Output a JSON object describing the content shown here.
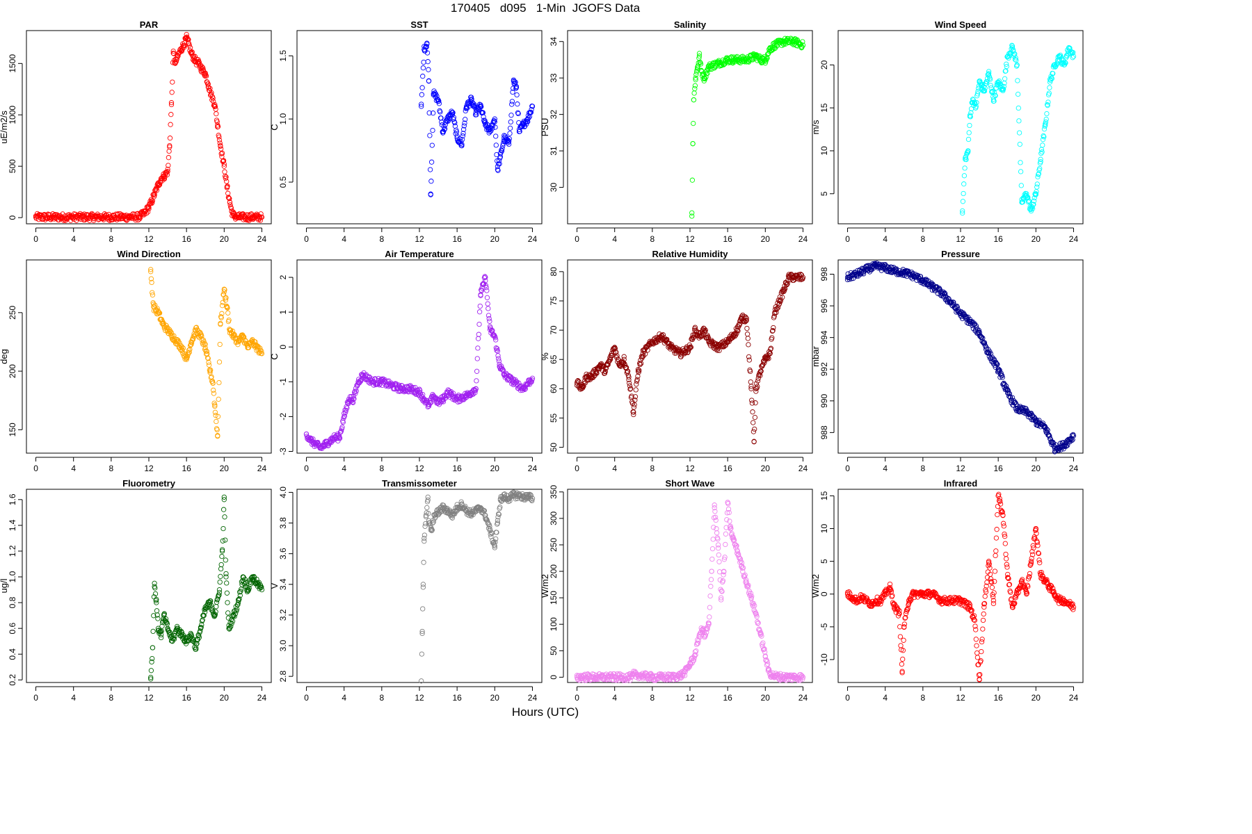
{
  "page": {
    "title": "170405   d095   1-Min  JGOFS Data",
    "x_label": "Hours (UTC)"
  },
  "chart_data": [
    {
      "type": "scatter",
      "title": "PAR",
      "ylabel": "uE/m2/s",
      "color": "#ff0000",
      "xlim": [
        -1,
        25
      ],
      "ylim": [
        -60,
        1820
      ],
      "xticks": [
        0,
        4,
        8,
        12,
        16,
        20,
        24
      ],
      "yticks": [
        0,
        500,
        1000,
        1500
      ],
      "series": [
        {
          "x": [
            0,
            2,
            4,
            6,
            8,
            10,
            11,
            11.5,
            12,
            12.3,
            12.6,
            13,
            13.3,
            13.6,
            14,
            14.2,
            14.4,
            14.6,
            14.8,
            15,
            15.2,
            15.5,
            15.8,
            16,
            16.2,
            16.5,
            16.8,
            17,
            17.3,
            17.6,
            18,
            18.3,
            18.6,
            19,
            19.3,
            19.6,
            20,
            20.3,
            20.6,
            20.8,
            21,
            21.2,
            21.5,
            22,
            23,
            24
          ],
          "y": [
            5,
            5,
            5,
            5,
            5,
            5,
            8,
            40,
            100,
            160,
            230,
            320,
            380,
            400,
            450,
            700,
            1100,
            1600,
            1500,
            1550,
            1600,
            1650,
            1700,
            1750,
            1700,
            1600,
            1550,
            1520,
            1500,
            1450,
            1400,
            1300,
            1200,
            1100,
            900,
            700,
            500,
            300,
            150,
            60,
            20,
            10,
            5,
            5,
            5,
            5
          ]
        }
      ]
    },
    {
      "type": "scatter",
      "title": "SST",
      "ylabel": "C",
      "color": "#0000ff",
      "xlim": [
        -1,
        25
      ],
      "ylim": [
        0.17,
        1.7
      ],
      "xticks": [
        0,
        4,
        8,
        12,
        16,
        20,
        24
      ],
      "yticks": [
        0.5,
        1.0,
        1.5
      ],
      "series": [
        {
          "x": [
            12.2,
            12.5,
            12.8,
            13,
            13.2,
            13.5,
            14,
            14.5,
            15,
            15.5,
            16,
            16.5,
            17,
            17.5,
            18,
            18.5,
            19,
            19.5,
            20,
            20.3,
            20.6,
            21,
            21.5,
            22,
            22.3,
            22.6,
            23,
            23.5,
            24
          ],
          "y": [
            1.1,
            1.55,
            1.6,
            1.3,
            0.4,
            1.2,
            1.15,
            0.9,
            1.0,
            1.05,
            0.85,
            0.8,
            1.1,
            1.15,
            1.05,
            1.1,
            0.95,
            0.9,
            1.0,
            0.6,
            0.7,
            0.85,
            0.8,
            1.3,
            1.25,
            0.9,
            0.95,
            1.0,
            1.1
          ]
        }
      ]
    },
    {
      "type": "scatter",
      "title": "Salinity",
      "ylabel": "PSU",
      "color": "#00ff00",
      "xlim": [
        -1,
        25
      ],
      "ylim": [
        29.0,
        34.3
      ],
      "xticks": [
        0,
        4,
        8,
        12,
        16,
        20,
        24
      ],
      "yticks": [
        30,
        31,
        32,
        33,
        34
      ],
      "series": [
        {
          "x": [
            12.2,
            12.3,
            12.4,
            12.6,
            12.8,
            13,
            13.2,
            13.5,
            14,
            15,
            16,
            17,
            18,
            19,
            19.5,
            20,
            20.5,
            21,
            22,
            23,
            24
          ],
          "y": [
            29.3,
            31.2,
            32.4,
            33.0,
            33.3,
            33.6,
            33.2,
            33.0,
            33.3,
            33.4,
            33.5,
            33.5,
            33.5,
            33.6,
            33.5,
            33.5,
            33.8,
            33.9,
            34.0,
            34.0,
            33.9
          ]
        }
      ]
    },
    {
      "type": "scatter",
      "title": "Wind Speed",
      "ylabel": "m/s",
      "color": "#00ffff",
      "xlim": [
        -1,
        25
      ],
      "ylim": [
        1.5,
        24
      ],
      "xticks": [
        0,
        4,
        8,
        12,
        16,
        20,
        24
      ],
      "yticks": [
        5,
        10,
        15,
        20
      ],
      "series": [
        {
          "x": [
            12.2,
            12.5,
            12.8,
            13,
            13.3,
            13.6,
            14,
            14.5,
            15,
            15.5,
            16,
            16.5,
            17,
            17.5,
            18,
            18.5,
            19,
            19.5,
            20,
            20.5,
            21,
            21.5,
            22,
            22.5,
            23,
            23.5,
            24
          ],
          "y": [
            3,
            9,
            10,
            14,
            16,
            15,
            18,
            17,
            19,
            16,
            18,
            17,
            21,
            22,
            20,
            4,
            5,
            3,
            5,
            9,
            13,
            18,
            20,
            21,
            20,
            22,
            21
          ]
        }
      ]
    },
    {
      "type": "scatter",
      "title": "Wind Direction",
      "ylabel": "deg",
      "color": "#ffa500",
      "xlim": [
        -1,
        25
      ],
      "ylim": [
        130,
        295
      ],
      "xticks": [
        0,
        4,
        8,
        12,
        16,
        20,
        24
      ],
      "yticks": [
        150,
        200,
        250
      ],
      "series": [
        {
          "x": [
            12.2,
            12.5,
            13,
            13.5,
            14,
            14.5,
            15,
            15.5,
            16,
            16.5,
            17,
            17.5,
            18,
            18.5,
            18.8,
            19,
            19.3,
            19.6,
            20,
            20.3,
            20.6,
            21,
            21.5,
            22,
            22.5,
            23,
            23.5,
            24
          ],
          "y": [
            285,
            255,
            250,
            240,
            235,
            230,
            225,
            220,
            210,
            225,
            235,
            230,
            220,
            200,
            190,
            170,
            145,
            240,
            270,
            255,
            235,
            230,
            225,
            230,
            220,
            225,
            220,
            215
          ]
        }
      ]
    },
    {
      "type": "scatter",
      "title": "Air Temperature",
      "ylabel": "C",
      "color": "#a020f0",
      "xlim": [
        -1,
        25
      ],
      "ylim": [
        -3.05,
        2.5
      ],
      "xticks": [
        0,
        4,
        8,
        12,
        16,
        20,
        24
      ],
      "yticks": [
        -3,
        -2,
        -1,
        0,
        1,
        2
      ],
      "series": [
        {
          "x": [
            0,
            0.5,
            1,
            1.5,
            2,
            2.5,
            3,
            3.5,
            4,
            4.5,
            5,
            5.5,
            6,
            7,
            8,
            9,
            10,
            11,
            12,
            12.5,
            13,
            13.5,
            14,
            14.5,
            15,
            16,
            17,
            18,
            18.5,
            19,
            19.5,
            20,
            20.5,
            21,
            22,
            23,
            24
          ],
          "y": [
            -2.5,
            -2.7,
            -2.8,
            -2.9,
            -2.8,
            -2.7,
            -2.6,
            -2.6,
            -2.0,
            -1.5,
            -1.5,
            -1.0,
            -0.8,
            -1.0,
            -1.0,
            -1.1,
            -1.2,
            -1.2,
            -1.3,
            -1.5,
            -1.7,
            -1.4,
            -1.6,
            -1.5,
            -1.3,
            -1.5,
            -1.4,
            -1.2,
            1.5,
            2.0,
            0.5,
            0.3,
            -0.5,
            -0.8,
            -1.0,
            -1.2,
            -0.9
          ]
        }
      ]
    },
    {
      "type": "scatter",
      "title": "Relative Humidity",
      "ylabel": "%",
      "color": "#8b0000",
      "xlim": [
        -1,
        25
      ],
      "ylim": [
        49,
        82
      ],
      "xticks": [
        0,
        4,
        8,
        12,
        16,
        20,
        24
      ],
      "yticks": [
        50,
        55,
        60,
        65,
        70,
        75,
        80
      ],
      "series": [
        {
          "x": [
            0,
            0.5,
            1,
            1.5,
            2,
            2.5,
            3,
            3.5,
            4,
            4.5,
            5,
            5.5,
            6,
            6.5,
            7,
            8,
            9,
            10,
            11,
            12,
            12.5,
            13,
            13.5,
            14,
            15,
            16,
            17,
            17.5,
            18,
            18.5,
            18.8,
            19,
            19.5,
            20,
            20.5,
            21,
            21.5,
            22,
            22.5,
            23,
            24
          ],
          "y": [
            61,
            60,
            62,
            62,
            63,
            64,
            63,
            65,
            67,
            64,
            65,
            62,
            56,
            63,
            66,
            68,
            69,
            67,
            66,
            67,
            70,
            69,
            70,
            68,
            67,
            68,
            70,
            72,
            72,
            60,
            51,
            60,
            63,
            65,
            66,
            73,
            75,
            77,
            79,
            79,
            79
          ]
        }
      ]
    },
    {
      "type": "scatter",
      "title": "Pressure",
      "ylabel": "mbar",
      "color": "#00008b",
      "xlim": [
        -1,
        25
      ],
      "ylim": [
        986.7,
        998.9
      ],
      "xticks": [
        0,
        4,
        8,
        12,
        16,
        20,
        24
      ],
      "yticks": [
        988,
        990,
        992,
        994,
        996,
        998
      ],
      "series": [
        {
          "x": [
            0,
            1,
            2,
            3,
            4,
            5,
            6,
            7,
            8,
            9,
            10,
            11,
            12,
            13,
            14,
            15,
            16,
            17,
            18,
            19,
            20,
            21,
            22,
            23,
            24
          ],
          "y": [
            997.8,
            998.0,
            998.3,
            998.5,
            998.4,
            998.2,
            998.1,
            997.9,
            997.6,
            997.2,
            996.8,
            996.2,
            995.5,
            995.0,
            994.3,
            993.0,
            992.0,
            990.5,
            989.5,
            989.3,
            988.7,
            988.3,
            987.0,
            987.2,
            987.8
          ]
        }
      ]
    },
    {
      "type": "scatter",
      "title": "Fluorometry",
      "ylabel": "ug/l",
      "color": "#006400",
      "xlim": [
        -1,
        25
      ],
      "ylim": [
        0.18,
        1.68
      ],
      "xticks": [
        0,
        4,
        8,
        12,
        16,
        20,
        24
      ],
      "yticks": [
        0.2,
        0.4,
        0.6,
        0.8,
        1.0,
        1.2,
        1.4,
        1.6
      ],
      "series": [
        {
          "x": [
            12.2,
            12.4,
            12.6,
            12.8,
            13,
            13.3,
            13.6,
            14,
            14.5,
            15,
            15.5,
            16,
            16.5,
            17,
            17.5,
            18,
            18.5,
            19,
            19.5,
            19.8,
            20,
            20.2,
            20.5,
            21,
            21.5,
            22,
            22.5,
            23,
            23.5,
            24
          ],
          "y": [
            0.22,
            0.45,
            0.95,
            0.8,
            0.6,
            0.55,
            0.7,
            0.6,
            0.5,
            0.6,
            0.55,
            0.5,
            0.55,
            0.45,
            0.6,
            0.75,
            0.8,
            0.7,
            0.9,
            1.2,
            1.6,
            1.0,
            0.6,
            0.7,
            0.8,
            1.0,
            0.9,
            1.0,
            0.95,
            0.9
          ]
        }
      ]
    },
    {
      "type": "scatter",
      "title": "Transmissometer",
      "ylabel": "V",
      "color": "#808080",
      "xlim": [
        -1,
        25
      ],
      "ylim": [
        2.76,
        4.02
      ],
      "xticks": [
        0,
        4,
        8,
        12,
        16,
        20,
        24
      ],
      "yticks": [
        2.8,
        3.0,
        3.2,
        3.4,
        3.6,
        3.8,
        4.0
      ],
      "series": [
        {
          "x": [
            12.2,
            12.3,
            12.4,
            12.5,
            12.7,
            12.9,
            13,
            13.3,
            13.6,
            14,
            14.5,
            15,
            15.5,
            16,
            16.5,
            17,
            17.5,
            18,
            18.5,
            19,
            19.5,
            20,
            20.3,
            20.6,
            21,
            21.5,
            22,
            22.5,
            23,
            23.5,
            24
          ],
          "y": [
            2.77,
            3.08,
            3.4,
            3.7,
            3.85,
            3.95,
            3.8,
            3.75,
            3.85,
            3.87,
            3.9,
            3.88,
            3.85,
            3.9,
            3.92,
            3.88,
            3.86,
            3.88,
            3.9,
            3.85,
            3.75,
            3.65,
            3.8,
            3.95,
            3.97,
            3.96,
            3.98,
            3.98,
            3.97,
            3.97,
            3.96
          ]
        }
      ]
    },
    {
      "type": "scatter",
      "title": "Short Wave",
      "ylabel": "W/m2",
      "color": "#ee82ee",
      "xlim": [
        -1,
        25
      ],
      "ylim": [
        -10,
        355
      ],
      "xticks": [
        0,
        4,
        8,
        12,
        16,
        20,
        24
      ],
      "yticks": [
        0,
        50,
        100,
        150,
        200,
        250,
        300,
        350
      ],
      "series": [
        {
          "x": [
            0,
            2,
            4,
            5.8,
            6,
            8,
            10,
            11,
            11.5,
            12,
            12.5,
            13,
            13.3,
            13.6,
            14,
            14.3,
            14.6,
            15,
            15.3,
            15.6,
            16,
            16.3,
            16.6,
            17,
            17.5,
            18,
            18.5,
            19,
            19.5,
            20,
            20.3,
            20.6,
            21,
            22,
            23,
            24
          ],
          "y": [
            0,
            0,
            0,
            0,
            5,
            0,
            0,
            3,
            10,
            25,
            40,
            80,
            90,
            80,
            100,
            200,
            320,
            250,
            150,
            200,
            330,
            280,
            260,
            240,
            210,
            180,
            150,
            120,
            80,
            40,
            15,
            5,
            2,
            0,
            0,
            0
          ]
        }
      ]
    },
    {
      "type": "scatter",
      "title": "Infrared",
      "ylabel": "W/m2",
      "color": "#ff0000",
      "xlim": [
        -1,
        25
      ],
      "ylim": [
        -13.5,
        16
      ],
      "xticks": [
        0,
        4,
        8,
        12,
        16,
        20,
        24
      ],
      "yticks": [
        -10,
        -5,
        0,
        5,
        10,
        15
      ],
      "series": [
        {
          "x": [
            0,
            0.5,
            1,
            1.5,
            2,
            2.5,
            3,
            3.5,
            4,
            4.5,
            5,
            5.5,
            5.8,
            6,
            6.5,
            7,
            8,
            9,
            10,
            11,
            12,
            13,
            13.5,
            14,
            14.5,
            15,
            15.5,
            16,
            16.5,
            17,
            17.5,
            18,
            18.5,
            19,
            19.5,
            20,
            20.5,
            21,
            21.5,
            22,
            22.5,
            23,
            24
          ],
          "y": [
            0,
            -0.5,
            -1,
            -0.5,
            -1,
            -1.5,
            -1,
            -1,
            0,
            1,
            -2,
            -3,
            -12,
            -5,
            -1,
            0,
            0,
            0,
            -1,
            -1,
            -1,
            -2,
            -4,
            -13,
            -2,
            5,
            -1,
            15,
            12,
            3,
            -2,
            0,
            2,
            0,
            5,
            10,
            3,
            2,
            1,
            0,
            -1,
            -1,
            -2
          ]
        }
      ]
    }
  ]
}
